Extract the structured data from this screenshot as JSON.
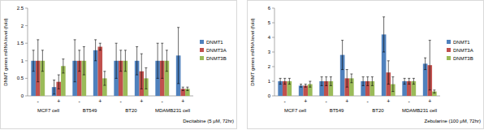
{
  "chart_data": [
    {
      "type": "bar",
      "y_label": "DNMT genes mRNA level (fold)",
      "x_label": "Decitabine (5 μM, 72hr)",
      "categories": [
        "-",
        "+",
        "-",
        "+",
        "-",
        "+",
        "-",
        "+"
      ],
      "groups": [
        "MCF7 cell",
        "BT549",
        "BT20",
        "MDAMB231 cell"
      ],
      "series": [
        {
          "name": "DNMT1",
          "color": "#4f81bd",
          "values": [
            1,
            0.25,
            1,
            1.3,
            1,
            1.0,
            1,
            1.15
          ],
          "errors": [
            0.3,
            0.2,
            0.6,
            0.3,
            0.5,
            0.4,
            0.5,
            0.8
          ]
        },
        {
          "name": "DNMT3A",
          "color": "#c0504d",
          "values": [
            1,
            0.4,
            1,
            1.4,
            1,
            0.7,
            1,
            0.2
          ],
          "errors": [
            0.6,
            0.2,
            0.3,
            0.1,
            0.3,
            0.5,
            0.5,
            0.05
          ]
        },
        {
          "name": "DNMT3B",
          "color": "#9bbb59",
          "values": [
            1,
            0.85,
            1,
            0.5,
            1,
            0.5,
            1,
            0.2
          ],
          "errors": [
            0.3,
            0.2,
            0.4,
            0.2,
            0.3,
            0.3,
            0.3,
            0.05
          ]
        }
      ],
      "ylim": [
        0,
        2.5
      ],
      "yticks": [
        0,
        0.5,
        1,
        1.5,
        2,
        2.5
      ],
      "grid": false,
      "legend": "right"
    },
    {
      "type": "bar",
      "y_label": "DNMT genes mRNA level (fold)",
      "x_label": "Zebularine (100 μM, 72hr)",
      "categories": [
        "-",
        "+",
        "-",
        "+",
        "-",
        "+",
        "-",
        "+"
      ],
      "groups": [
        "MCF7 cell",
        "BT549",
        "BT20",
        "MDAMB231 cell"
      ],
      "series": [
        {
          "name": "DNMT1",
          "color": "#4f81bd",
          "values": [
            1,
            0.7,
            1,
            2.8,
            1,
            4.2,
            1,
            2.2
          ],
          "errors": [
            0.2,
            0.1,
            0.3,
            1.0,
            0.3,
            1.2,
            0.2,
            0.4
          ]
        },
        {
          "name": "DNMT3A",
          "color": "#c0504d",
          "values": [
            1,
            0.7,
            1,
            1.2,
            1,
            1.6,
            1,
            2.1
          ],
          "errors": [
            0.2,
            0.1,
            0.3,
            0.6,
            0.3,
            0.8,
            0.2,
            1.7
          ]
        },
        {
          "name": "DNMT3B",
          "color": "#9bbb59",
          "values": [
            1,
            0.8,
            1,
            1.2,
            1,
            0.8,
            1,
            0.3
          ],
          "errors": [
            0.2,
            0.2,
            0.3,
            0.3,
            0.3,
            0.5,
            0.2,
            0.1
          ]
        }
      ],
      "ylim": [
        0,
        6
      ],
      "yticks": [
        0,
        1,
        2,
        3,
        4,
        5,
        6
      ],
      "grid": false,
      "legend": "right"
    }
  ]
}
